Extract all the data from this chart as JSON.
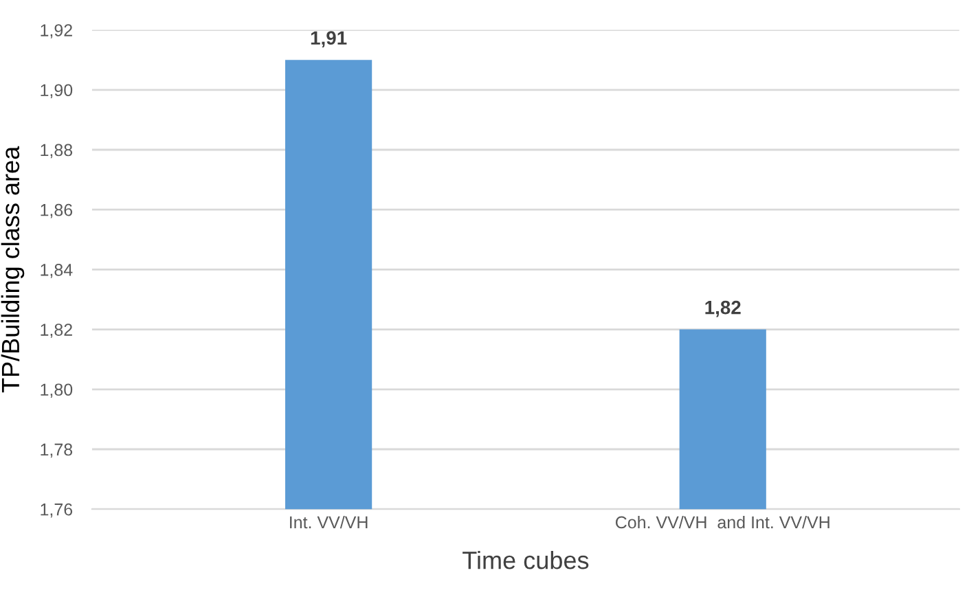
{
  "chart_data": {
    "type": "bar",
    "xlabel": "Time cubes",
    "ylabel": "TP/Building class area",
    "categories": [
      "Int. VV/VH",
      "Coh. VV/VH  and Int. VV/VH"
    ],
    "values": [
      1.91,
      1.82
    ],
    "color": "#5b9bd5",
    "value_labels": [
      "1,91",
      "1,82"
    ],
    "ylim": [
      1.76,
      1.92
    ],
    "yticks": [
      {
        "value": 1.76,
        "label": "1,76"
      },
      {
        "value": 1.78,
        "label": "1,78"
      },
      {
        "value": 1.8,
        "label": "1,80"
      },
      {
        "value": 1.82,
        "label": "1,82"
      },
      {
        "value": 1.84,
        "label": "1,84"
      },
      {
        "value": 1.86,
        "label": "1,86"
      },
      {
        "value": 1.88,
        "label": "1,88"
      },
      {
        "value": 1.9,
        "label": "1,90"
      },
      {
        "value": 1.92,
        "label": "1,92"
      }
    ],
    "grid": "y"
  }
}
